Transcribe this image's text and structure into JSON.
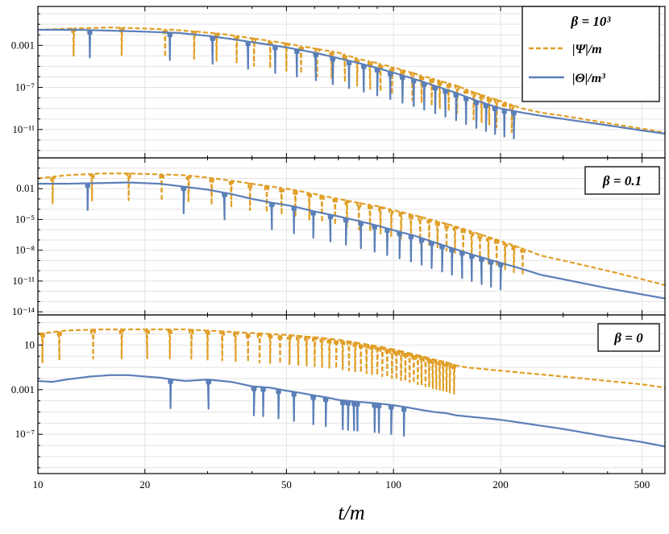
{
  "chart_data": [
    {
      "type": "line",
      "panel": "top",
      "legend_title": "β = 10³",
      "xscale": "log",
      "yscale": "log",
      "xlim": [
        10,
        580
      ],
      "ylim": [
        2e-14,
        5
      ],
      "yticks": [
        {
          "value": 0.001,
          "label": "0.001"
        },
        {
          "value": 1e-07,
          "label": "10⁻⁷"
        },
        {
          "value": 1e-11,
          "label": "10⁻¹¹"
        }
      ],
      "legend_position": "top-right",
      "series": [
        {
          "name": "|Ψ|/m",
          "style": "dashed",
          "color": "#e09f27",
          "x": [
            10,
            12.5,
            16,
            20,
            24,
            28,
            33,
            38,
            44,
            50,
            60,
            70,
            80,
            90,
            100,
            115,
            130,
            150,
            170,
            200,
            230,
            260,
            300,
            400,
            500,
            580
          ],
          "y": [
            0.03,
            0.04,
            0.05,
            0.04,
            0.03,
            0.02,
            0.012,
            0.006,
            0.003,
            0.0015,
            0.0005,
            0.0002,
            5e-05,
            2e-05,
            8e-06,
            2e-06,
            6e-07,
            1.5e-07,
            3e-08,
            5e-09,
            1e-09,
            4e-10,
            2e-10,
            4e-11,
            1.2e-11,
            5e-12
          ],
          "dips": [
            12.6,
            17.2,
            22.8,
            27.5,
            31.8,
            36.2,
            40.5,
            45,
            50,
            55,
            61,
            67,
            73,
            79,
            86,
            92,
            99,
            106,
            113,
            120,
            128,
            135,
            143,
            151,
            160,
            168,
            177,
            186,
            195,
            205,
            215
          ]
        },
        {
          "name": "|Θ|/m³",
          "style": "solid",
          "color": "#5b7fb8",
          "x": [
            10,
            13,
            16,
            20,
            25,
            30,
            35,
            40,
            46,
            52,
            60,
            70,
            80,
            90,
            100,
            115,
            130,
            150,
            170,
            200,
            230,
            260,
            300,
            400,
            500,
            580
          ],
          "y": [
            0.03,
            0.03,
            0.025,
            0.02,
            0.015,
            0.008,
            0.004,
            0.002,
            0.001,
            0.0005,
            0.0002,
            6e-05,
            2e-05,
            7e-06,
            2.5e-06,
            6e-07,
            1.5e-07,
            3e-08,
            6e-09,
            1e-09,
            4e-10,
            2e-10,
            1e-10,
            2.5e-11,
            8e-12,
            4e-12
          ],
          "dips": [
            14,
            23.5,
            31,
            39,
            46.5,
            53.5,
            60.5,
            67.5,
            75,
            82.5,
            90,
            98,
            106,
            114,
            122,
            131,
            140,
            150,
            160,
            171,
            182,
            193,
            205,
            218
          ]
        }
      ]
    },
    {
      "type": "line",
      "panel": "middle",
      "legend_title": "β = 0.1",
      "xscale": "log",
      "yscale": "log",
      "xlim": [
        10,
        580
      ],
      "ylim": [
        5e-15,
        10
      ],
      "yticks": [
        {
          "value": 0.01,
          "label": "0.01"
        },
        {
          "value": 1e-05,
          "label": "10⁻⁵"
        },
        {
          "value": 1e-08,
          "label": "10⁻⁸"
        },
        {
          "value": 1e-11,
          "label": "10⁻¹¹"
        },
        {
          "value": 1e-14,
          "label": "10⁻¹⁴"
        }
      ],
      "legend_position": "top-right",
      "series": [
        {
          "name": "|Ψ|/m",
          "style": "dashed",
          "color": "#e09f27",
          "x": [
            10,
            12,
            15,
            18,
            22,
            26,
            30,
            35,
            40,
            46,
            52,
            60,
            70,
            80,
            90,
            100,
            115,
            130,
            150,
            170,
            200,
            230,
            260,
            300,
            400,
            500,
            580
          ],
          "y": [
            0.1,
            0.2,
            0.3,
            0.3,
            0.25,
            0.2,
            0.12,
            0.06,
            0.03,
            0.015,
            0.008,
            0.003,
            0.001,
            0.0004,
            0.0002,
            8e-05,
            2.5e-05,
            8e-06,
            2e-06,
            5e-07,
            8e-08,
            1.5e-08,
            3e-09,
            1e-09,
            1e-10,
            1.5e-11,
            4e-12
          ],
          "dips": [
            11,
            14.2,
            18,
            22.3,
            26.5,
            30.8,
            35,
            39.5,
            44,
            48.5,
            53,
            58,
            63,
            68.5,
            74,
            80,
            86,
            92,
            98.5,
            105,
            112,
            119,
            126,
            133,
            141,
            149,
            157,
            166,
            175,
            185,
            195,
            206,
            218,
            231
          ]
        },
        {
          "name": "|Θ|/m³",
          "style": "solid",
          "color": "#5b7fb8",
          "x": [
            10,
            12,
            15,
            18,
            22,
            26,
            30,
            35,
            40,
            46,
            52,
            60,
            70,
            80,
            90,
            100,
            115,
            130,
            150,
            170,
            200,
            230,
            260,
            300,
            400,
            500,
            580
          ],
          "y": [
            0.03,
            0.03,
            0.035,
            0.04,
            0.03,
            0.015,
            0.008,
            0.003,
            0.001,
            0.0004,
            0.0002,
            6e-05,
            2e-05,
            7e-06,
            2.5e-06,
            9e-07,
            2.5e-07,
            6e-08,
            1.2e-08,
            3e-09,
            6e-10,
            1.5e-10,
            4e-11,
            1.5e-11,
            2e-12,
            5e-13,
            2e-13
          ],
          "dips": [
            13.8,
            25.7,
            33.5,
            45.5,
            52.5,
            59.5,
            66.5,
            73.5,
            81,
            88.5,
            96,
            104,
            112,
            120,
            128,
            137,
            146,
            156,
            166,
            177,
            188,
            200
          ]
        }
      ]
    },
    {
      "type": "line",
      "panel": "bottom",
      "legend_title": "β = 0",
      "xscale": "log",
      "yscale": "log",
      "xlim": [
        10,
        580
      ],
      "ylim": [
        3e-11,
        5000
      ],
      "yticks": [
        {
          "value": 10,
          "label": "10"
        },
        {
          "value": 0.001,
          "label": "0.001"
        },
        {
          "value": 1e-07,
          "label": "10⁻⁷"
        }
      ],
      "xticks": [
        {
          "value": 10,
          "label": "10"
        },
        {
          "value": 20,
          "label": "20"
        },
        {
          "value": 50,
          "label": "50"
        },
        {
          "value": 100,
          "label": "100"
        },
        {
          "value": 200,
          "label": "200"
        },
        {
          "value": 500,
          "label": "500"
        }
      ],
      "xlabel": "t/m",
      "legend_position": "top-right",
      "series": [
        {
          "name": "|Ψ|/m",
          "style": "dashed",
          "color": "#e09f27",
          "x": [
            10,
            12,
            15,
            18,
            22,
            26,
            30,
            35,
            40,
            50,
            60,
            70,
            80,
            90,
            100,
            110,
            120,
            130,
            140,
            150,
            160,
            200,
            300,
            400,
            500,
            580
          ],
          "y": [
            100,
            200,
            250,
            250,
            250,
            250,
            200,
            150,
            120,
            80,
            50,
            30,
            15,
            8,
            4,
            2,
            1,
            0.5,
            0.3,
            0.15,
            0.1,
            0.05,
            0.015,
            0.006,
            0.003,
            0.0015
          ],
          "dips": [
            10.3,
            11.5,
            14.3,
            17.2,
            20.3,
            23.5,
            27,
            30,
            33,
            36,
            39,
            42,
            45,
            48,
            51,
            54,
            57,
            60,
            63,
            66,
            69,
            72,
            75,
            78,
            81,
            84,
            87,
            90,
            93,
            96,
            99,
            102,
            105,
            108,
            111,
            114,
            117,
            120,
            123,
            126,
            129,
            132,
            135,
            138,
            141,
            144,
            148
          ]
        },
        {
          "name": "|Θ|/m³",
          "style": "solid",
          "color": "#5b7fb8",
          "x": [
            10,
            11,
            12,
            14,
            16,
            18,
            20,
            22,
            24,
            26,
            30,
            35,
            40,
            45,
            50,
            55,
            60,
            65,
            70,
            80,
            90,
            100,
            110,
            120,
            130,
            140,
            150,
            200,
            300,
            400,
            500,
            580
          ],
          "y": [
            0.006,
            0.005,
            0.008,
            0.015,
            0.02,
            0.02,
            0.015,
            0.012,
            0.008,
            0.006,
            0.008,
            0.005,
            0.002,
            0.0015,
            0.0008,
            0.0005,
            0.0003,
            0.0002,
            0.00012,
            8e-05,
            6e-05,
            4e-05,
            2.5e-05,
            1.5e-05,
            1e-05,
            8e-06,
            5e-06,
            2e-06,
            3e-07,
            6e-08,
            2e-08,
            8e-09
          ],
          "dips": [
            23.6,
            30.2,
            40.5,
            43,
            47.5,
            52.5,
            59.5,
            64.5,
            72,
            74.5,
            77.5,
            79.2,
            88.5,
            91,
            98.5,
            107
          ]
        }
      ]
    }
  ]
}
